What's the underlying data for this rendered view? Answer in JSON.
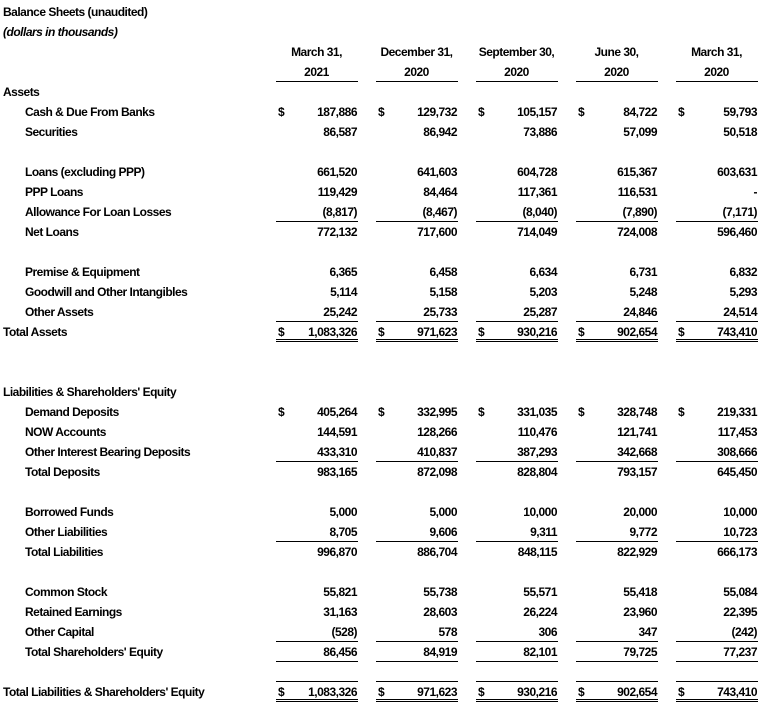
{
  "title": "Balance Sheets (unaudited)",
  "subtitle": "(dollars in thousands)",
  "columns": [
    {
      "line1": "March 31,",
      "line2": "2021"
    },
    {
      "line1": "December 31,",
      "line2": "2020"
    },
    {
      "line1": "September 30,",
      "line2": "2020"
    },
    {
      "line1": "June 30,",
      "line2": "2020"
    },
    {
      "line1": "March 31,",
      "line2": "2020"
    }
  ],
  "rows": [
    {
      "label": "Assets",
      "type": "section"
    },
    {
      "label": "Cash & Due From Banks",
      "dollar": true,
      "values": [
        "187,886",
        "129,732",
        "105,157",
        "84,722",
        "59,793"
      ]
    },
    {
      "label": "Securities",
      "values": [
        "86,587",
        "86,942",
        "73,886",
        "57,099",
        "50,518"
      ]
    },
    {
      "type": "blank"
    },
    {
      "label": "Loans (excluding PPP)",
      "values": [
        "661,520",
        "641,603",
        "604,728",
        "615,367",
        "603,631"
      ]
    },
    {
      "label": "PPP Loans",
      "values": [
        "119,429",
        "84,464",
        "117,361",
        "116,531",
        "-"
      ]
    },
    {
      "label": "Allowance For Loan Losses",
      "rule": "single",
      "values": [
        "(8,817)",
        "(8,467)",
        "(8,040)",
        "(7,890)",
        "(7,171)"
      ]
    },
    {
      "label": "Net Loans",
      "total": true,
      "values": [
        "772,132",
        "717,600",
        "714,049",
        "724,008",
        "596,460"
      ]
    },
    {
      "type": "blank"
    },
    {
      "label": "Premise & Equipment",
      "values": [
        "6,365",
        "6,458",
        "6,634",
        "6,731",
        "6,832"
      ]
    },
    {
      "label": "Goodwill and Other Intangibles",
      "values": [
        "5,114",
        "5,158",
        "5,203",
        "5,248",
        "5,293"
      ]
    },
    {
      "label": "Other Assets",
      "rule": "single",
      "values": [
        "25,242",
        "25,733",
        "25,287",
        "24,846",
        "24,514"
      ]
    },
    {
      "label": "Total Assets",
      "type": "section",
      "dollar": true,
      "rule": "double",
      "values": [
        "1,083,326",
        "971,623",
        "930,216",
        "902,654",
        "743,410"
      ]
    },
    {
      "type": "blank"
    },
    {
      "type": "blank"
    },
    {
      "label": "Liabilities & Shareholders' Equity",
      "type": "section"
    },
    {
      "label": "Demand Deposits",
      "dollar": true,
      "values": [
        "405,264",
        "332,995",
        "331,035",
        "328,748",
        "219,331"
      ]
    },
    {
      "label": "NOW Accounts",
      "values": [
        "144,591",
        "128,266",
        "110,476",
        "121,741",
        "117,453"
      ]
    },
    {
      "label": "Other Interest Bearing Deposits",
      "rule": "single",
      "values": [
        "433,310",
        "410,837",
        "387,293",
        "342,668",
        "308,666"
      ]
    },
    {
      "label": "Total Deposits",
      "total": true,
      "values": [
        "983,165",
        "872,098",
        "828,804",
        "793,157",
        "645,450"
      ]
    },
    {
      "type": "blank"
    },
    {
      "label": "Borrowed Funds",
      "values": [
        "5,000",
        "5,000",
        "10,000",
        "20,000",
        "10,000"
      ]
    },
    {
      "label": "Other Liabilities",
      "rule": "single",
      "values": [
        "8,705",
        "9,606",
        "9,311",
        "9,772",
        "10,723"
      ]
    },
    {
      "label": "Total Liabilities",
      "total": true,
      "values": [
        "996,870",
        "886,704",
        "848,115",
        "822,929",
        "666,173"
      ]
    },
    {
      "type": "blank"
    },
    {
      "label": "Common Stock",
      "values": [
        "55,821",
        "55,738",
        "55,571",
        "55,418",
        "55,084"
      ]
    },
    {
      "label": "Retained Earnings",
      "values": [
        "31,163",
        "28,603",
        "26,224",
        "23,960",
        "22,395"
      ]
    },
    {
      "label": "Other Capital",
      "rule": "single",
      "values": [
        "(528)",
        "578",
        "306",
        "347",
        "(242)"
      ]
    },
    {
      "label": "Total Shareholders' Equity",
      "total": true,
      "rule": "single",
      "values": [
        "86,456",
        "84,919",
        "82,101",
        "79,725",
        "77,237"
      ]
    },
    {
      "type": "blank",
      "rule": "single"
    },
    {
      "label": "Total Liabilities & Shareholders' Equity",
      "type": "section",
      "dollar": true,
      "rule": "double",
      "values": [
        "1,083,326",
        "971,623",
        "930,216",
        "902,654",
        "743,410"
      ]
    }
  ]
}
